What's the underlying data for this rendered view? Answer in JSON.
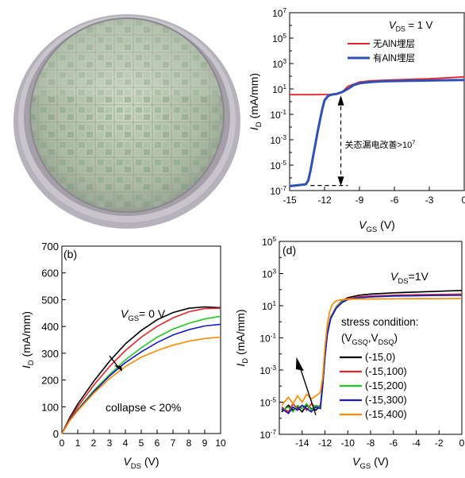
{
  "chart_data": [
    {
      "id": "a",
      "type": "line",
      "panel_label": "",
      "xlabel_main": "V",
      "xlabel_sub": "GS",
      "xlabel_unit": " (V)",
      "ylabel_main": "I",
      "ylabel_sub": "D",
      "ylabel_unit": " (mA/mm)",
      "xlim": [
        -15,
        0
      ],
      "ylim_log10": [
        -7,
        7
      ],
      "y_scale": "log",
      "xticks": [
        -15,
        -12,
        -9,
        -6,
        -3,
        0
      ],
      "yticks_exp": [
        -7,
        -5,
        -3,
        -1,
        1,
        3,
        5,
        7
      ],
      "condition_main": "V",
      "condition_sub": "DS",
      "condition_rest": " = 1 V",
      "annotation": "关态漏电改善>10",
      "annotation_exp": "7",
      "legend_position": "top-right",
      "series": [
        {
          "name": "无AlN埋层",
          "color": "#e8242a",
          "x": [
            -15,
            -14,
            -13,
            -12,
            -11.5,
            -11,
            -10.5,
            -10,
            -9,
            -8,
            -6,
            -3,
            0
          ],
          "y_log10": [
            0.55,
            0.55,
            0.55,
            0.56,
            0.57,
            0.6,
            0.75,
            1.2,
            1.55,
            1.65,
            1.72,
            1.8,
            1.95
          ]
        },
        {
          "name": "有AlN埋层",
          "color": "#2f4fb8",
          "x": [
            -15,
            -14.5,
            -14,
            -13.6,
            -13.4,
            -13.2,
            -13,
            -12.8,
            -12.6,
            -12.4,
            -12.2,
            -12,
            -11.7,
            -11.4,
            -11,
            -10.5,
            -10,
            -9.5,
            -9,
            -8,
            -7,
            -6,
            -4,
            -2,
            0
          ],
          "y_log10": [
            -6.65,
            -6.6,
            -6.55,
            -6.5,
            -6.2,
            -5.4,
            -4.4,
            -3.4,
            -2.4,
            -1.5,
            -0.6,
            0.1,
            0.45,
            0.55,
            0.6,
            0.75,
            1.0,
            1.3,
            1.45,
            1.55,
            1.6,
            1.62,
            1.65,
            1.68,
            1.7
          ]
        }
      ]
    },
    {
      "id": "b",
      "type": "line",
      "panel_label": "(b)",
      "xlabel_main": "V",
      "xlabel_sub": "DS",
      "xlabel_unit": " (V)",
      "ylabel_main": "I",
      "ylabel_sub": "D",
      "ylabel_unit": " (mA/mm)",
      "xlim": [
        0,
        10
      ],
      "ylim": [
        0,
        700
      ],
      "xticks": [
        0,
        1,
        2,
        3,
        4,
        5,
        6,
        7,
        8,
        9,
        10
      ],
      "yticks": [
        0,
        100,
        200,
        300,
        400,
        500,
        600,
        700
      ],
      "condition_main": "V",
      "condition_sub": "GS",
      "condition_rest": "= 0 V",
      "annotation": "collapse < 20%",
      "series": [
        {
          "color": "#000000",
          "x": [
            0,
            0.5,
            1,
            2,
            3,
            4,
            5,
            6,
            7,
            8,
            9,
            10
          ],
          "y": [
            0,
            60,
            110,
            195,
            270,
            335,
            385,
            425,
            452,
            468,
            473,
            470
          ]
        },
        {
          "color": "#e8242a",
          "x": [
            0,
            0.5,
            1,
            2,
            3,
            4,
            5,
            6,
            7,
            8,
            9,
            10
          ],
          "y": [
            0,
            55,
            100,
            180,
            250,
            310,
            360,
            400,
            432,
            455,
            467,
            468
          ]
        },
        {
          "color": "#22c822",
          "x": [
            0,
            0.5,
            1,
            2,
            3,
            4,
            5,
            6,
            7,
            8,
            9,
            10
          ],
          "y": [
            0,
            50,
            90,
            160,
            220,
            275,
            320,
            360,
            390,
            412,
            428,
            438
          ]
        },
        {
          "color": "#1a1ac8",
          "x": [
            0,
            0.5,
            1,
            2,
            3,
            4,
            5,
            6,
            7,
            8,
            9,
            10
          ],
          "y": [
            0,
            50,
            88,
            155,
            215,
            265,
            305,
            340,
            368,
            388,
            402,
            408
          ]
        },
        {
          "color": "#ff8c00",
          "x": [
            0,
            0.5,
            1,
            2,
            3,
            4,
            5,
            6,
            7,
            8,
            9,
            10
          ],
          "y": [
            0,
            48,
            85,
            150,
            205,
            250,
            285,
            310,
            330,
            345,
            355,
            360
          ]
        }
      ]
    },
    {
      "id": "d",
      "type": "line",
      "panel_label": "(d)",
      "xlabel_main": "V",
      "xlabel_sub": "GS",
      "xlabel_unit": " (V)",
      "ylabel_main": "I",
      "ylabel_sub": "D",
      "ylabel_unit": " (mA/mm)",
      "xlim": [
        -16,
        0
      ],
      "ylim_log10": [
        -7,
        5
      ],
      "y_scale": "log",
      "xticks": [
        -14,
        -12,
        -10,
        -8,
        -6,
        -4,
        -2,
        0
      ],
      "xticklabels": [
        "-14",
        "-12",
        "-10",
        "-8",
        "-6",
        "-4",
        "-2",
        "0"
      ],
      "yticks_exp": [
        -7,
        -5,
        -3,
        -1,
        1,
        3,
        5
      ],
      "condition_main": "V",
      "condition_sub": "DS",
      "condition_rest": "=1V",
      "legend_title": "stress condition:",
      "legend_subtitle": [
        "(V",
        "GSQ",
        ",V",
        "DSQ",
        ")"
      ],
      "legend_position": "right",
      "series": [
        {
          "name": "(-15,0)",
          "color": "#000000",
          "x": [
            -15.8,
            -15.2,
            -14.8,
            -14.4,
            -14,
            -13.6,
            -13.2,
            -12.8,
            -12.4,
            -12.2,
            -12,
            -11.8,
            -11.5,
            -11,
            -10.5,
            -10,
            -9,
            -8,
            -6,
            -4,
            -2,
            0
          ],
          "y_log10": [
            -5.6,
            -5.2,
            -5.5,
            -5.3,
            -5.6,
            -5.2,
            -5.4,
            -5.5,
            -5.2,
            -4,
            -2.2,
            -0.8,
            0.2,
            0.9,
            1.3,
            1.5,
            1.65,
            1.72,
            1.8,
            1.85,
            1.9,
            1.95
          ]
        },
        {
          "name": "(-15,100)",
          "color": "#e8242a",
          "x": [
            -15.8,
            -15.2,
            -14.8,
            -14.4,
            -14,
            -13.6,
            -13.2,
            -12.8,
            -12.4,
            -12.2,
            -12,
            -11.8,
            -11.5,
            -11,
            -10.5,
            -10,
            -9,
            -8,
            -6,
            -4,
            -2,
            0
          ],
          "y_log10": [
            -5.3,
            -5.6,
            -5.1,
            -5.4,
            -5.2,
            -5.5,
            -5.1,
            -5.3,
            -5.2,
            -3.8,
            -2,
            -0.6,
            0.3,
            0.95,
            1.3,
            1.45,
            1.55,
            1.6,
            1.65,
            1.68,
            1.7,
            1.72
          ]
        },
        {
          "name": "(-15,200)",
          "color": "#22c822",
          "x": [
            -15.8,
            -15.2,
            -14.8,
            -14.4,
            -14,
            -13.6,
            -13.2,
            -12.8,
            -12.4,
            -12.2,
            -12,
            -11.8,
            -11.5,
            -11,
            -10.5,
            -10,
            -9,
            -8,
            -6,
            -4,
            -2,
            0
          ],
          "y_log10": [
            -5.5,
            -5.3,
            -5.6,
            -5.2,
            -5.4,
            -5.1,
            -5.5,
            -5.2,
            -5.3,
            -3.9,
            -2.1,
            -0.7,
            0.25,
            0.9,
            1.25,
            1.4,
            1.5,
            1.55,
            1.6,
            1.62,
            1.65,
            1.66
          ]
        },
        {
          "name": "(-15,300)",
          "color": "#1a1ac8",
          "x": [
            -15.8,
            -15.2,
            -14.8,
            -14.4,
            -14,
            -13.6,
            -13.2,
            -12.8,
            -12.4,
            -12.2,
            -12,
            -11.8,
            -11.5,
            -11,
            -10.5,
            -10,
            -9,
            -8,
            -6,
            -4,
            -2,
            0
          ],
          "y_log10": [
            -5.4,
            -5.7,
            -5.3,
            -5.5,
            -5.2,
            -5.4,
            -5.6,
            -5.3,
            -5.4,
            -4,
            -2.2,
            -0.8,
            0.2,
            0.85,
            1.2,
            1.38,
            1.5,
            1.55,
            1.6,
            1.62,
            1.64,
            1.65
          ]
        },
        {
          "name": "(-15,400)",
          "color": "#ff8c00",
          "x": [
            -15.8,
            -15.2,
            -14.8,
            -14.4,
            -14,
            -13.6,
            -13.2,
            -12.8,
            -12.4,
            -12.2,
            -12,
            -11.8,
            -11.6,
            -11.4,
            -11.2,
            -11,
            -10.5,
            -10,
            -9,
            -8,
            -6,
            -4,
            -2,
            0
          ],
          "y_log10": [
            -5.2,
            -4.7,
            -5.1,
            -4.6,
            -5.0,
            -4.5,
            -4.8,
            -4.6,
            -4.4,
            -3.5,
            -1.6,
            -0.2,
            0.6,
            1.0,
            1.2,
            1.3,
            1.38,
            1.4,
            1.42,
            1.42,
            1.43,
            1.44,
            1.44,
            1.45
          ]
        }
      ]
    }
  ]
}
